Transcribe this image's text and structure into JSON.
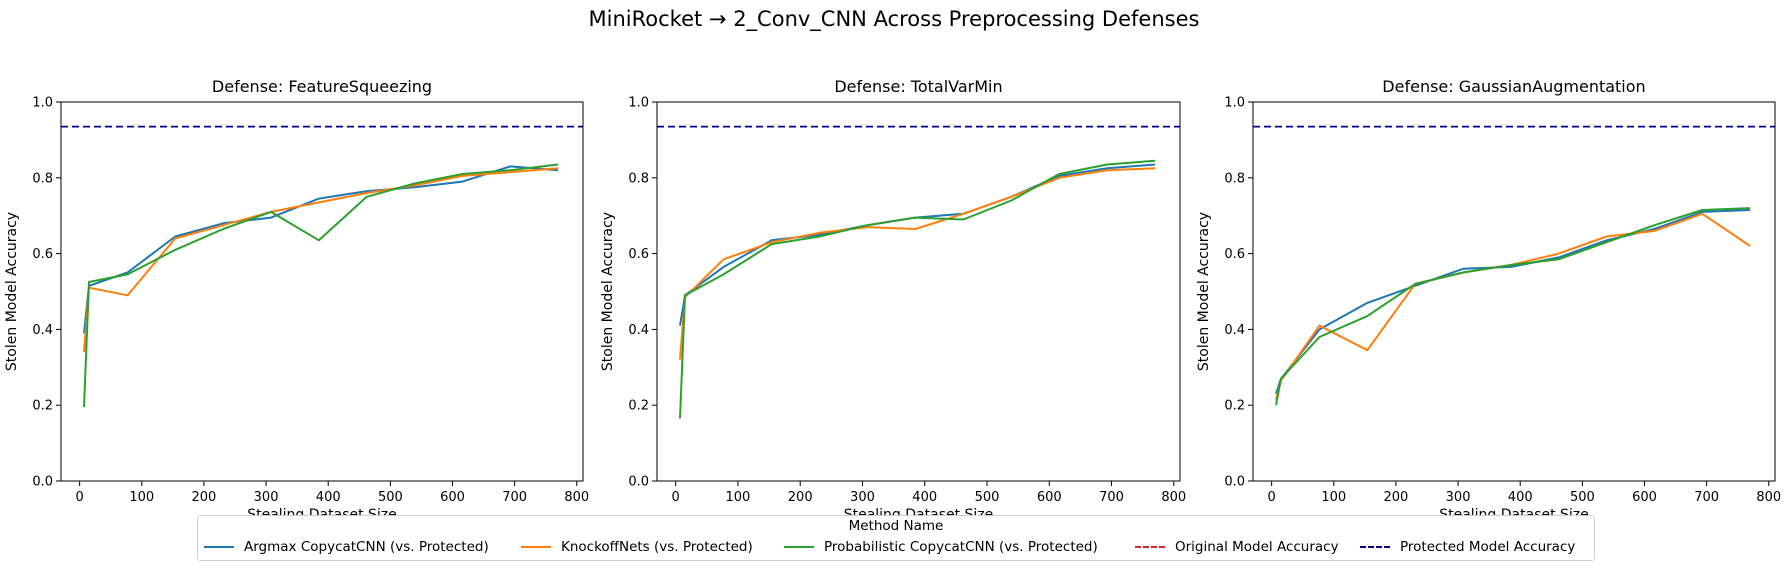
{
  "figure": {
    "suptitle": "MiniRocket → 2_Conv_CNN Across Preprocessing Defenses",
    "legend_title": "Method Name",
    "legend": [
      {
        "label": "Argmax CopycatCNN (vs. Protected)",
        "color": "#1f77b4",
        "style": "solid"
      },
      {
        "label": "KnockoffNets (vs. Protected)",
        "color": "#ff7f0e",
        "style": "solid"
      },
      {
        "label": "Probabilistic CopycatCNN (vs. Protected)",
        "color": "#2ca02c",
        "style": "solid"
      },
      {
        "label": "Original Model Accuracy",
        "color": "#d62728",
        "style": "dashed"
      },
      {
        "label": "Protected Model Accuracy",
        "color": "#00008b",
        "style": "dashed"
      }
    ]
  },
  "chart_data": [
    {
      "type": "line",
      "title": "Defense: FeatureSqueezing",
      "xlabel": "Stealing Dataset Size",
      "ylabel": "Stolen Model Accuracy",
      "xlim": [
        -30,
        810
      ],
      "ylim": [
        0,
        1.0
      ],
      "xticks": [
        0,
        100,
        200,
        300,
        400,
        500,
        600,
        700,
        800
      ],
      "yticks": [
        0.0,
        0.2,
        0.4,
        0.6,
        0.8,
        1.0
      ],
      "hlines": [
        {
          "name": "Protected Model Accuracy",
          "value": 0.935,
          "color": "#00008b"
        }
      ],
      "series": [
        {
          "name": "Argmax CopycatCNN (vs. Protected)",
          "color": "#1f77b4",
          "x": [
            7,
            15,
            77,
            154,
            231,
            308,
            385,
            462,
            539,
            616,
            693,
            770
          ],
          "y": [
            0.39,
            0.515,
            0.55,
            0.645,
            0.68,
            0.695,
            0.745,
            0.765,
            0.775,
            0.79,
            0.83,
            0.82
          ]
        },
        {
          "name": "KnockoffNets (vs. Protected)",
          "color": "#ff7f0e",
          "x": [
            7,
            15,
            77,
            154,
            231,
            308,
            385,
            462,
            539,
            616,
            693,
            770
          ],
          "y": [
            0.34,
            0.51,
            0.49,
            0.64,
            0.675,
            0.71,
            0.735,
            0.76,
            0.78,
            0.805,
            0.815,
            0.825
          ]
        },
        {
          "name": "Probabilistic CopycatCNN (vs. Protected)",
          "color": "#2ca02c",
          "x": [
            7,
            15,
            77,
            154,
            231,
            308,
            385,
            462,
            539,
            616,
            693,
            770
          ],
          "y": [
            0.195,
            0.525,
            0.545,
            0.61,
            0.665,
            0.71,
            0.635,
            0.75,
            0.785,
            0.81,
            0.82,
            0.835
          ]
        }
      ]
    },
    {
      "type": "line",
      "title": "Defense: TotalVarMin",
      "xlabel": "Stealing Dataset Size",
      "ylabel": "Stolen Model Accuracy",
      "xlim": [
        -30,
        810
      ],
      "ylim": [
        0,
        1.0
      ],
      "xticks": [
        0,
        100,
        200,
        300,
        400,
        500,
        600,
        700,
        800
      ],
      "yticks": [
        0.0,
        0.2,
        0.4,
        0.6,
        0.8,
        1.0
      ],
      "hlines": [
        {
          "name": "Protected Model Accuracy",
          "value": 0.935,
          "color": "#00008b"
        }
      ],
      "series": [
        {
          "name": "Argmax CopycatCNN (vs. Protected)",
          "color": "#1f77b4",
          "x": [
            7,
            15,
            77,
            154,
            231,
            308,
            385,
            462,
            539,
            616,
            693,
            770
          ],
          "y": [
            0.41,
            0.49,
            0.565,
            0.635,
            0.65,
            0.675,
            0.695,
            0.705,
            0.75,
            0.805,
            0.825,
            0.835
          ]
        },
        {
          "name": "KnockoffNets (vs. Protected)",
          "color": "#ff7f0e",
          "x": [
            7,
            15,
            77,
            154,
            231,
            308,
            385,
            462,
            539,
            616,
            693,
            770
          ],
          "y": [
            0.32,
            0.485,
            0.585,
            0.63,
            0.655,
            0.67,
            0.665,
            0.705,
            0.75,
            0.8,
            0.82,
            0.825
          ]
        },
        {
          "name": "Probabilistic CopycatCNN (vs. Protected)",
          "color": "#2ca02c",
          "x": [
            7,
            15,
            77,
            154,
            231,
            308,
            385,
            462,
            539,
            616,
            693,
            770
          ],
          "y": [
            0.165,
            0.49,
            0.545,
            0.625,
            0.645,
            0.675,
            0.695,
            0.69,
            0.74,
            0.81,
            0.835,
            0.845
          ]
        }
      ]
    },
    {
      "type": "line",
      "title": "Defense: GaussianAugmentation",
      "xlabel": "Stealing Dataset Size",
      "ylabel": "Stolen Model Accuracy",
      "xlim": [
        -30,
        810
      ],
      "ylim": [
        0,
        1.0
      ],
      "xticks": [
        0,
        100,
        200,
        300,
        400,
        500,
        600,
        700,
        800
      ],
      "yticks": [
        0.0,
        0.2,
        0.4,
        0.6,
        0.8,
        1.0
      ],
      "hlines": [
        {
          "name": "Protected Model Accuracy",
          "value": 0.935,
          "color": "#00008b"
        }
      ],
      "series": [
        {
          "name": "Argmax CopycatCNN (vs. Protected)",
          "color": "#1f77b4",
          "x": [
            7,
            15,
            77,
            154,
            231,
            308,
            385,
            462,
            539,
            616,
            693,
            770
          ],
          "y": [
            0.23,
            0.27,
            0.4,
            0.47,
            0.515,
            0.56,
            0.565,
            0.59,
            0.635,
            0.665,
            0.71,
            0.715
          ]
        },
        {
          "name": "KnockoffNets (vs. Protected)",
          "color": "#ff7f0e",
          "x": [
            7,
            15,
            77,
            154,
            231,
            308,
            385,
            462,
            539,
            616,
            693,
            770
          ],
          "y": [
            0.215,
            0.265,
            0.41,
            0.345,
            0.52,
            0.55,
            0.57,
            0.6,
            0.645,
            0.66,
            0.705,
            0.62
          ]
        },
        {
          "name": "Probabilistic CopycatCNN (vs. Protected)",
          "color": "#2ca02c",
          "x": [
            7,
            15,
            77,
            154,
            231,
            308,
            385,
            462,
            539,
            616,
            693,
            770
          ],
          "y": [
            0.2,
            0.27,
            0.38,
            0.435,
            0.52,
            0.55,
            0.57,
            0.585,
            0.63,
            0.675,
            0.715,
            0.72
          ]
        }
      ]
    }
  ]
}
